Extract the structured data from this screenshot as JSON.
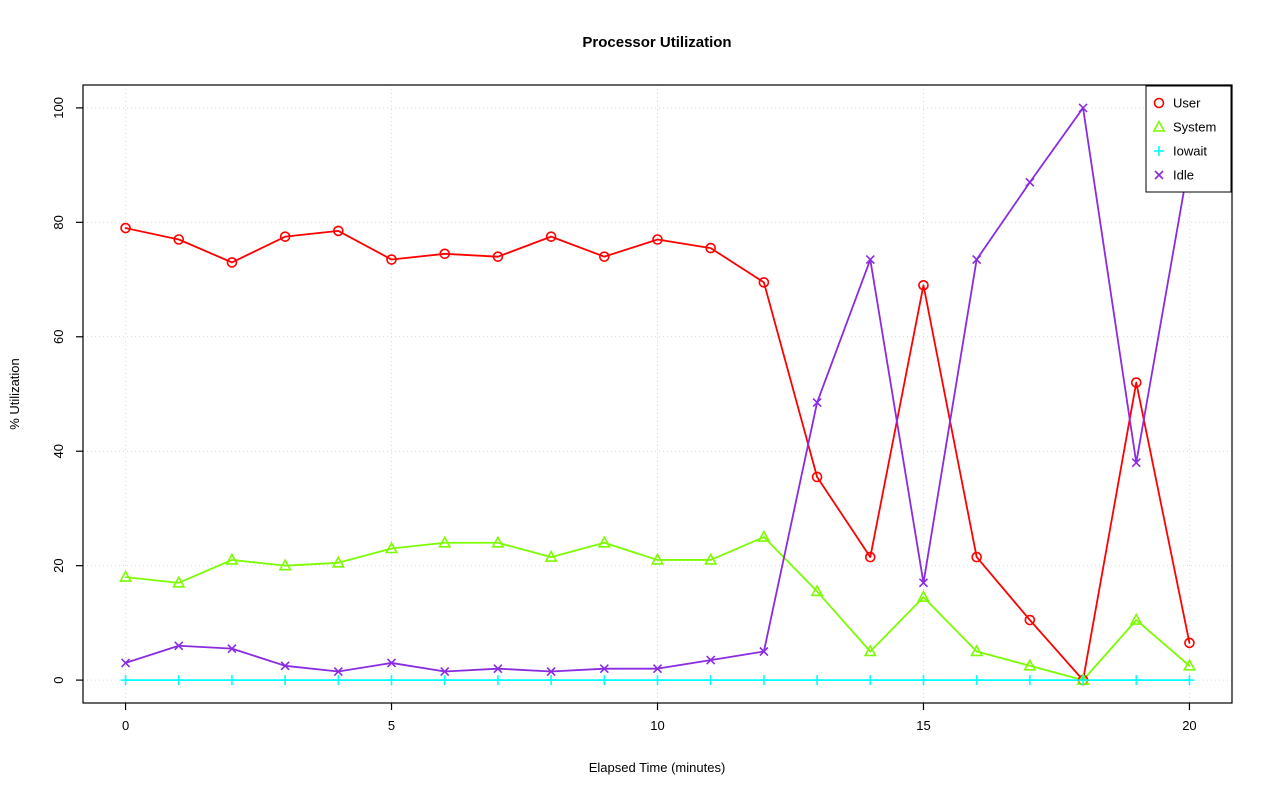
{
  "page": {
    "background_color": "#ffffff"
  },
  "chart_data": {
    "type": "line",
    "title": "Processor Utilization",
    "xlabel": "Elapsed Time (minutes)",
    "ylabel": "% Utilization",
    "xlim": [
      0,
      20
    ],
    "ylim": [
      0,
      100
    ],
    "xticks": [
      0,
      5,
      10,
      15,
      20
    ],
    "yticks": [
      0,
      20,
      40,
      60,
      80,
      100
    ],
    "grid": true,
    "grid_color": "#d9d9d9",
    "axis_color": "#000000",
    "legend_position": "top-right",
    "x": [
      0,
      1,
      2,
      3,
      4,
      5,
      6,
      7,
      8,
      9,
      10,
      11,
      12,
      13,
      14,
      15,
      16,
      17,
      18,
      19,
      20
    ],
    "series": [
      {
        "name": "User",
        "color": "#ff0000",
        "marker": "circle",
        "values": [
          79,
          77,
          73,
          77.5,
          78.5,
          73.5,
          74.5,
          74,
          77.5,
          74,
          77,
          75.5,
          69.5,
          35.5,
          21.5,
          69,
          21.5,
          10.5,
          0,
          52,
          6.5
        ]
      },
      {
        "name": "System",
        "color": "#7cfc00",
        "marker": "triangle",
        "values": [
          18,
          17,
          21,
          20,
          20.5,
          23,
          24,
          24,
          21.5,
          24,
          21,
          21,
          25,
          15.5,
          5,
          14.5,
          5,
          2.5,
          0,
          10.5,
          2.5
        ]
      },
      {
        "name": "Iowait",
        "color": "#00ffff",
        "marker": "plus",
        "values": [
          0,
          0,
          0,
          0,
          0,
          0,
          0,
          0,
          0,
          0,
          0,
          0,
          0,
          0,
          0,
          0,
          0,
          0,
          0,
          0,
          0
        ]
      },
      {
        "name": "Idle",
        "color": "#8a2be2",
        "marker": "x",
        "values": [
          3,
          6,
          5.5,
          2.5,
          1.5,
          3,
          1.5,
          2,
          1.5,
          2,
          2,
          3.5,
          5,
          48.5,
          73.5,
          17,
          73.5,
          87,
          100,
          38,
          91
        ]
      }
    ]
  }
}
